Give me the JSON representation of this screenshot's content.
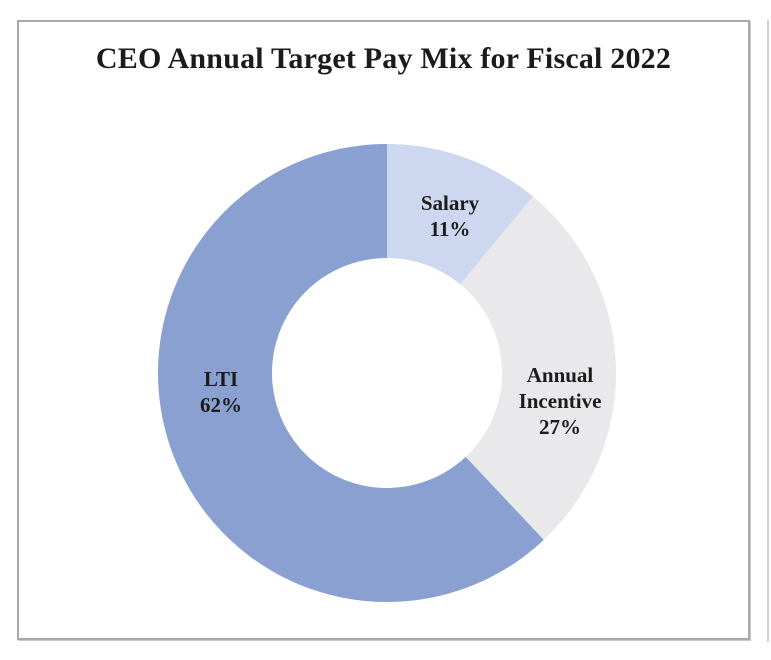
{
  "chart_data": {
    "type": "pie",
    "subtype": "donut",
    "title": "CEO Annual Target Pay Mix for Fiscal 2022",
    "start_angle_deg": 0,
    "direction": "clockwise",
    "inner_radius_ratio": 0.5,
    "legend": "none",
    "data_labels": "category name and percentage inside slices",
    "categories": [
      "Salary",
      "Annual Incentive",
      "LTI"
    ],
    "values": [
      11,
      27,
      62
    ],
    "segments": [
      {
        "label": "Salary",
        "value_pct": 11,
        "pct_label": "11%",
        "color": "#cdd7ef"
      },
      {
        "label": "Annual Incentive",
        "value_pct": 27,
        "pct_label": "27%",
        "color": "#e9e9eb"
      },
      {
        "label": "LTI",
        "value_pct": 62,
        "pct_label": "62%",
        "color": "#8aa0d0"
      }
    ],
    "colors": {
      "salary": "#cdd7ef",
      "annual_incentive": "#e9e9eb",
      "lti": "#8aa0d0",
      "text": "#1c1c1c",
      "card_border": "#a9a9a9"
    }
  }
}
